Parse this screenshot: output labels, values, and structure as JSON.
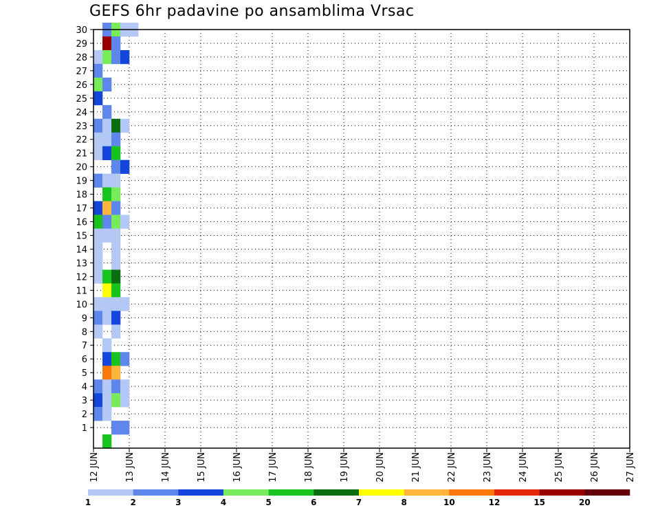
{
  "chart_data": {
    "type": "heatmap",
    "title": "GEFS 6hr padavine po ansamblima Vrsac",
    "xlabel": "",
    "ylabel": "",
    "x_ticks": [
      "12 JUN",
      "13 JUN",
      "14 JUN",
      "15 JUN",
      "16 JUN",
      "17 JUN",
      "18 JUN",
      "19 JUN",
      "20 JUN",
      "21 JUN",
      "22 JUN",
      "23 JUN",
      "24 JUN",
      "25 JUN",
      "26 JUN",
      "27 JUN"
    ],
    "y_ticks": [
      "1",
      "2",
      "3",
      "4",
      "5",
      "6",
      "7",
      "8",
      "9",
      "10",
      "11",
      "12",
      "13",
      "14",
      "15",
      "16",
      "17",
      "18",
      "19",
      "20",
      "21",
      "22",
      "23",
      "24",
      "25",
      "26",
      "27",
      "28",
      "29",
      "30"
    ],
    "y_range": [
      0,
      30
    ],
    "time_steps": 60,
    "steps_per_day": 4,
    "grid": true,
    "legend": {
      "position": "bottom",
      "labels": [
        "1",
        "2",
        "3",
        "4",
        "5",
        "6",
        "7",
        "8",
        "10",
        "12",
        "15",
        "20"
      ],
      "colors": [
        "#b4c8f5",
        "#5f87eb",
        "#1446dc",
        "#78eb5a",
        "#19c31e",
        "#0a6e0f",
        "#ffff00",
        "#ffb43c",
        "#fa780a",
        "#e6280a",
        "#960000",
        "#64000a"
      ]
    },
    "cells": [
      {
        "m": 30,
        "t": [
          [
            1,
            2
          ],
          [
            2,
            4
          ],
          [
            3,
            1
          ],
          [
            4,
            1
          ]
        ]
      },
      {
        "m": 29,
        "t": [
          [
            1,
            11
          ],
          [
            2,
            2
          ]
        ]
      },
      {
        "m": 28,
        "t": [
          [
            0,
            1
          ],
          [
            1,
            4
          ],
          [
            2,
            2
          ],
          [
            3,
            3
          ]
        ]
      },
      {
        "m": 27,
        "t": [
          [
            0,
            2
          ]
        ]
      },
      {
        "m": 26,
        "t": [
          [
            0,
            4
          ],
          [
            1,
            2
          ]
        ]
      },
      {
        "m": 25,
        "t": [
          [
            0,
            3
          ]
        ]
      },
      {
        "m": 24,
        "t": [
          [
            1,
            2
          ]
        ]
      },
      {
        "m": 23,
        "t": [
          [
            0,
            2
          ],
          [
            1,
            1
          ],
          [
            2,
            6
          ],
          [
            3,
            1
          ]
        ]
      },
      {
        "m": 22,
        "t": [
          [
            0,
            1
          ],
          [
            1,
            1
          ],
          [
            2,
            2
          ]
        ]
      },
      {
        "m": 21,
        "t": [
          [
            0,
            1
          ],
          [
            1,
            3
          ],
          [
            2,
            5
          ]
        ]
      },
      {
        "m": 20,
        "t": [
          [
            2,
            2
          ],
          [
            3,
            3
          ]
        ]
      },
      {
        "m": 19,
        "t": [
          [
            0,
            2
          ],
          [
            1,
            1
          ],
          [
            2,
            1
          ]
        ]
      },
      {
        "m": 18,
        "t": [
          [
            1,
            5
          ],
          [
            2,
            4
          ]
        ]
      },
      {
        "m": 17,
        "t": [
          [
            0,
            3
          ],
          [
            1,
            8
          ],
          [
            2,
            2
          ]
        ]
      },
      {
        "m": 16,
        "t": [
          [
            0,
            5
          ],
          [
            1,
            2
          ],
          [
            2,
            4
          ],
          [
            3,
            1
          ]
        ]
      },
      {
        "m": 15,
        "t": [
          [
            0,
            1
          ],
          [
            1,
            1
          ],
          [
            2,
            1
          ]
        ]
      },
      {
        "m": 14,
        "t": [
          [
            0,
            1
          ],
          [
            2,
            1
          ]
        ]
      },
      {
        "m": 13,
        "t": [
          [
            0,
            1
          ],
          [
            2,
            1
          ]
        ]
      },
      {
        "m": 12,
        "t": [
          [
            0,
            1
          ],
          [
            1,
            5
          ],
          [
            2,
            6
          ]
        ]
      },
      {
        "m": 11,
        "t": [
          [
            1,
            7
          ],
          [
            2,
            5
          ]
        ]
      },
      {
        "m": 10,
        "t": [
          [
            0,
            1
          ],
          [
            1,
            1
          ],
          [
            2,
            1
          ],
          [
            3,
            1
          ]
        ]
      },
      {
        "m": 9,
        "t": [
          [
            0,
            2
          ],
          [
            1,
            1
          ],
          [
            2,
            3
          ]
        ]
      },
      {
        "m": 8,
        "t": [
          [
            0,
            1
          ],
          [
            2,
            1
          ]
        ]
      },
      {
        "m": 7,
        "t": [
          [
            1,
            1
          ]
        ]
      },
      {
        "m": 6,
        "t": [
          [
            1,
            3
          ],
          [
            2,
            5
          ],
          [
            3,
            2
          ]
        ]
      },
      {
        "m": 5,
        "t": [
          [
            1,
            9
          ],
          [
            2,
            8
          ]
        ]
      },
      {
        "m": 4,
        "t": [
          [
            0,
            2
          ],
          [
            1,
            1
          ],
          [
            2,
            2
          ],
          [
            3,
            1
          ]
        ]
      },
      {
        "m": 3,
        "t": [
          [
            0,
            3
          ],
          [
            1,
            1
          ],
          [
            2,
            4
          ],
          [
            3,
            1
          ]
        ]
      },
      {
        "m": 2,
        "t": [
          [
            0,
            2
          ],
          [
            1,
            1
          ]
        ]
      },
      {
        "m": 1,
        "t": [
          [
            2,
            2
          ],
          [
            3,
            2
          ]
        ]
      },
      {
        "m": 0,
        "t": [
          [
            1,
            5
          ]
        ]
      }
    ]
  }
}
